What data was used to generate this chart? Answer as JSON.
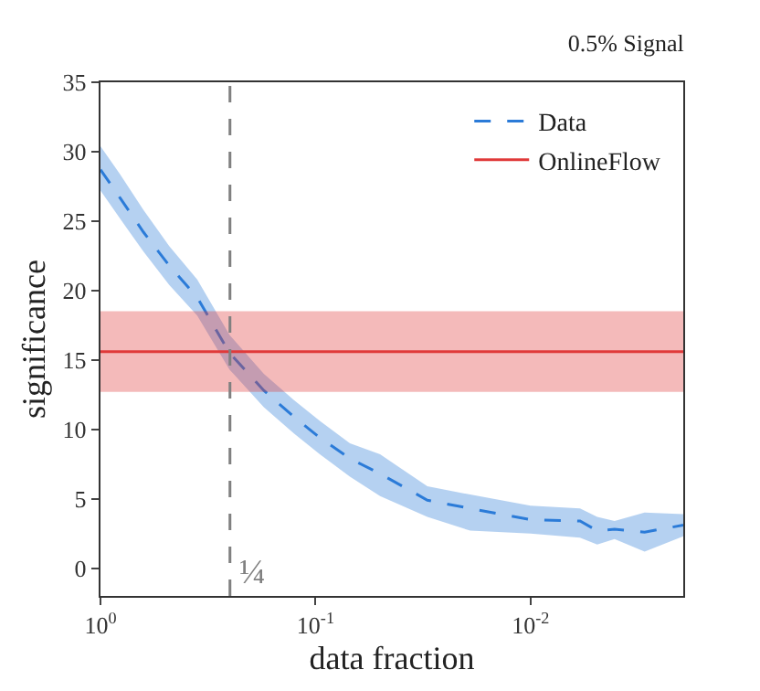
{
  "chart_data": {
    "type": "line",
    "title": "0.5% Signal",
    "xlabel": "data fraction",
    "ylabel": "significance",
    "log": "x",
    "xlim": [
      1,
      0.00195
    ],
    "xticks": [
      {
        "value": 1,
        "label": "10$^{0}$"
      },
      {
        "value": 0.1,
        "label": "10$^{-1}$"
      },
      {
        "value": 0.01,
        "label": "10$^{-2}$"
      }
    ],
    "ylim": [
      -2,
      35
    ],
    "yticks": [
      0,
      5,
      10,
      15,
      20,
      25,
      30,
      35
    ],
    "legend": "top right",
    "ref_lines": [
      {
        "axis": "x",
        "value": 0.25,
        "label": "¼",
        "color": "#808080",
        "line_style": "dashed"
      }
    ],
    "series": [
      {
        "name": "Data",
        "color": "#2b7bd8",
        "line_style": "dashed",
        "x": [
          1,
          0.813,
          0.631,
          0.479,
          0.355,
          0.251,
          0.174,
          0.126,
          0.0955,
          0.0692,
          0.0501,
          0.0302,
          0.0191,
          0.01,
          0.00589,
          0.0049,
          0.00407,
          0.00295,
          0.00195
        ],
        "values": [
          28.7,
          26.7,
          24.2,
          21.8,
          19.5,
          15.5,
          12.8,
          10.9,
          9.4,
          7.9,
          6.8,
          4.9,
          4.3,
          3.5,
          3.4,
          2.7,
          2.8,
          2.6,
          3.1
        ],
        "lower": [
          27.2,
          25.2,
          22.8,
          20.4,
          18.2,
          14.3,
          11.6,
          9.7,
          8.2,
          6.6,
          5.2,
          3.7,
          2.7,
          2.5,
          2.2,
          1.7,
          2.1,
          1.2,
          2.3
        ],
        "upper": [
          30.4,
          28.4,
          25.8,
          23.2,
          20.8,
          16.8,
          14.0,
          12.1,
          10.6,
          9.0,
          8.2,
          5.9,
          5.3,
          4.5,
          4.3,
          3.7,
          3.4,
          4.0,
          3.9
        ]
      },
      {
        "name": "OnlineFlow",
        "color": "#e03a3a",
        "line_style": "solid",
        "x": [
          1,
          0.00195
        ],
        "values": [
          15.6,
          15.6
        ],
        "lower": [
          12.7,
          12.7
        ],
        "upper": [
          18.5,
          18.5
        ]
      }
    ]
  }
}
